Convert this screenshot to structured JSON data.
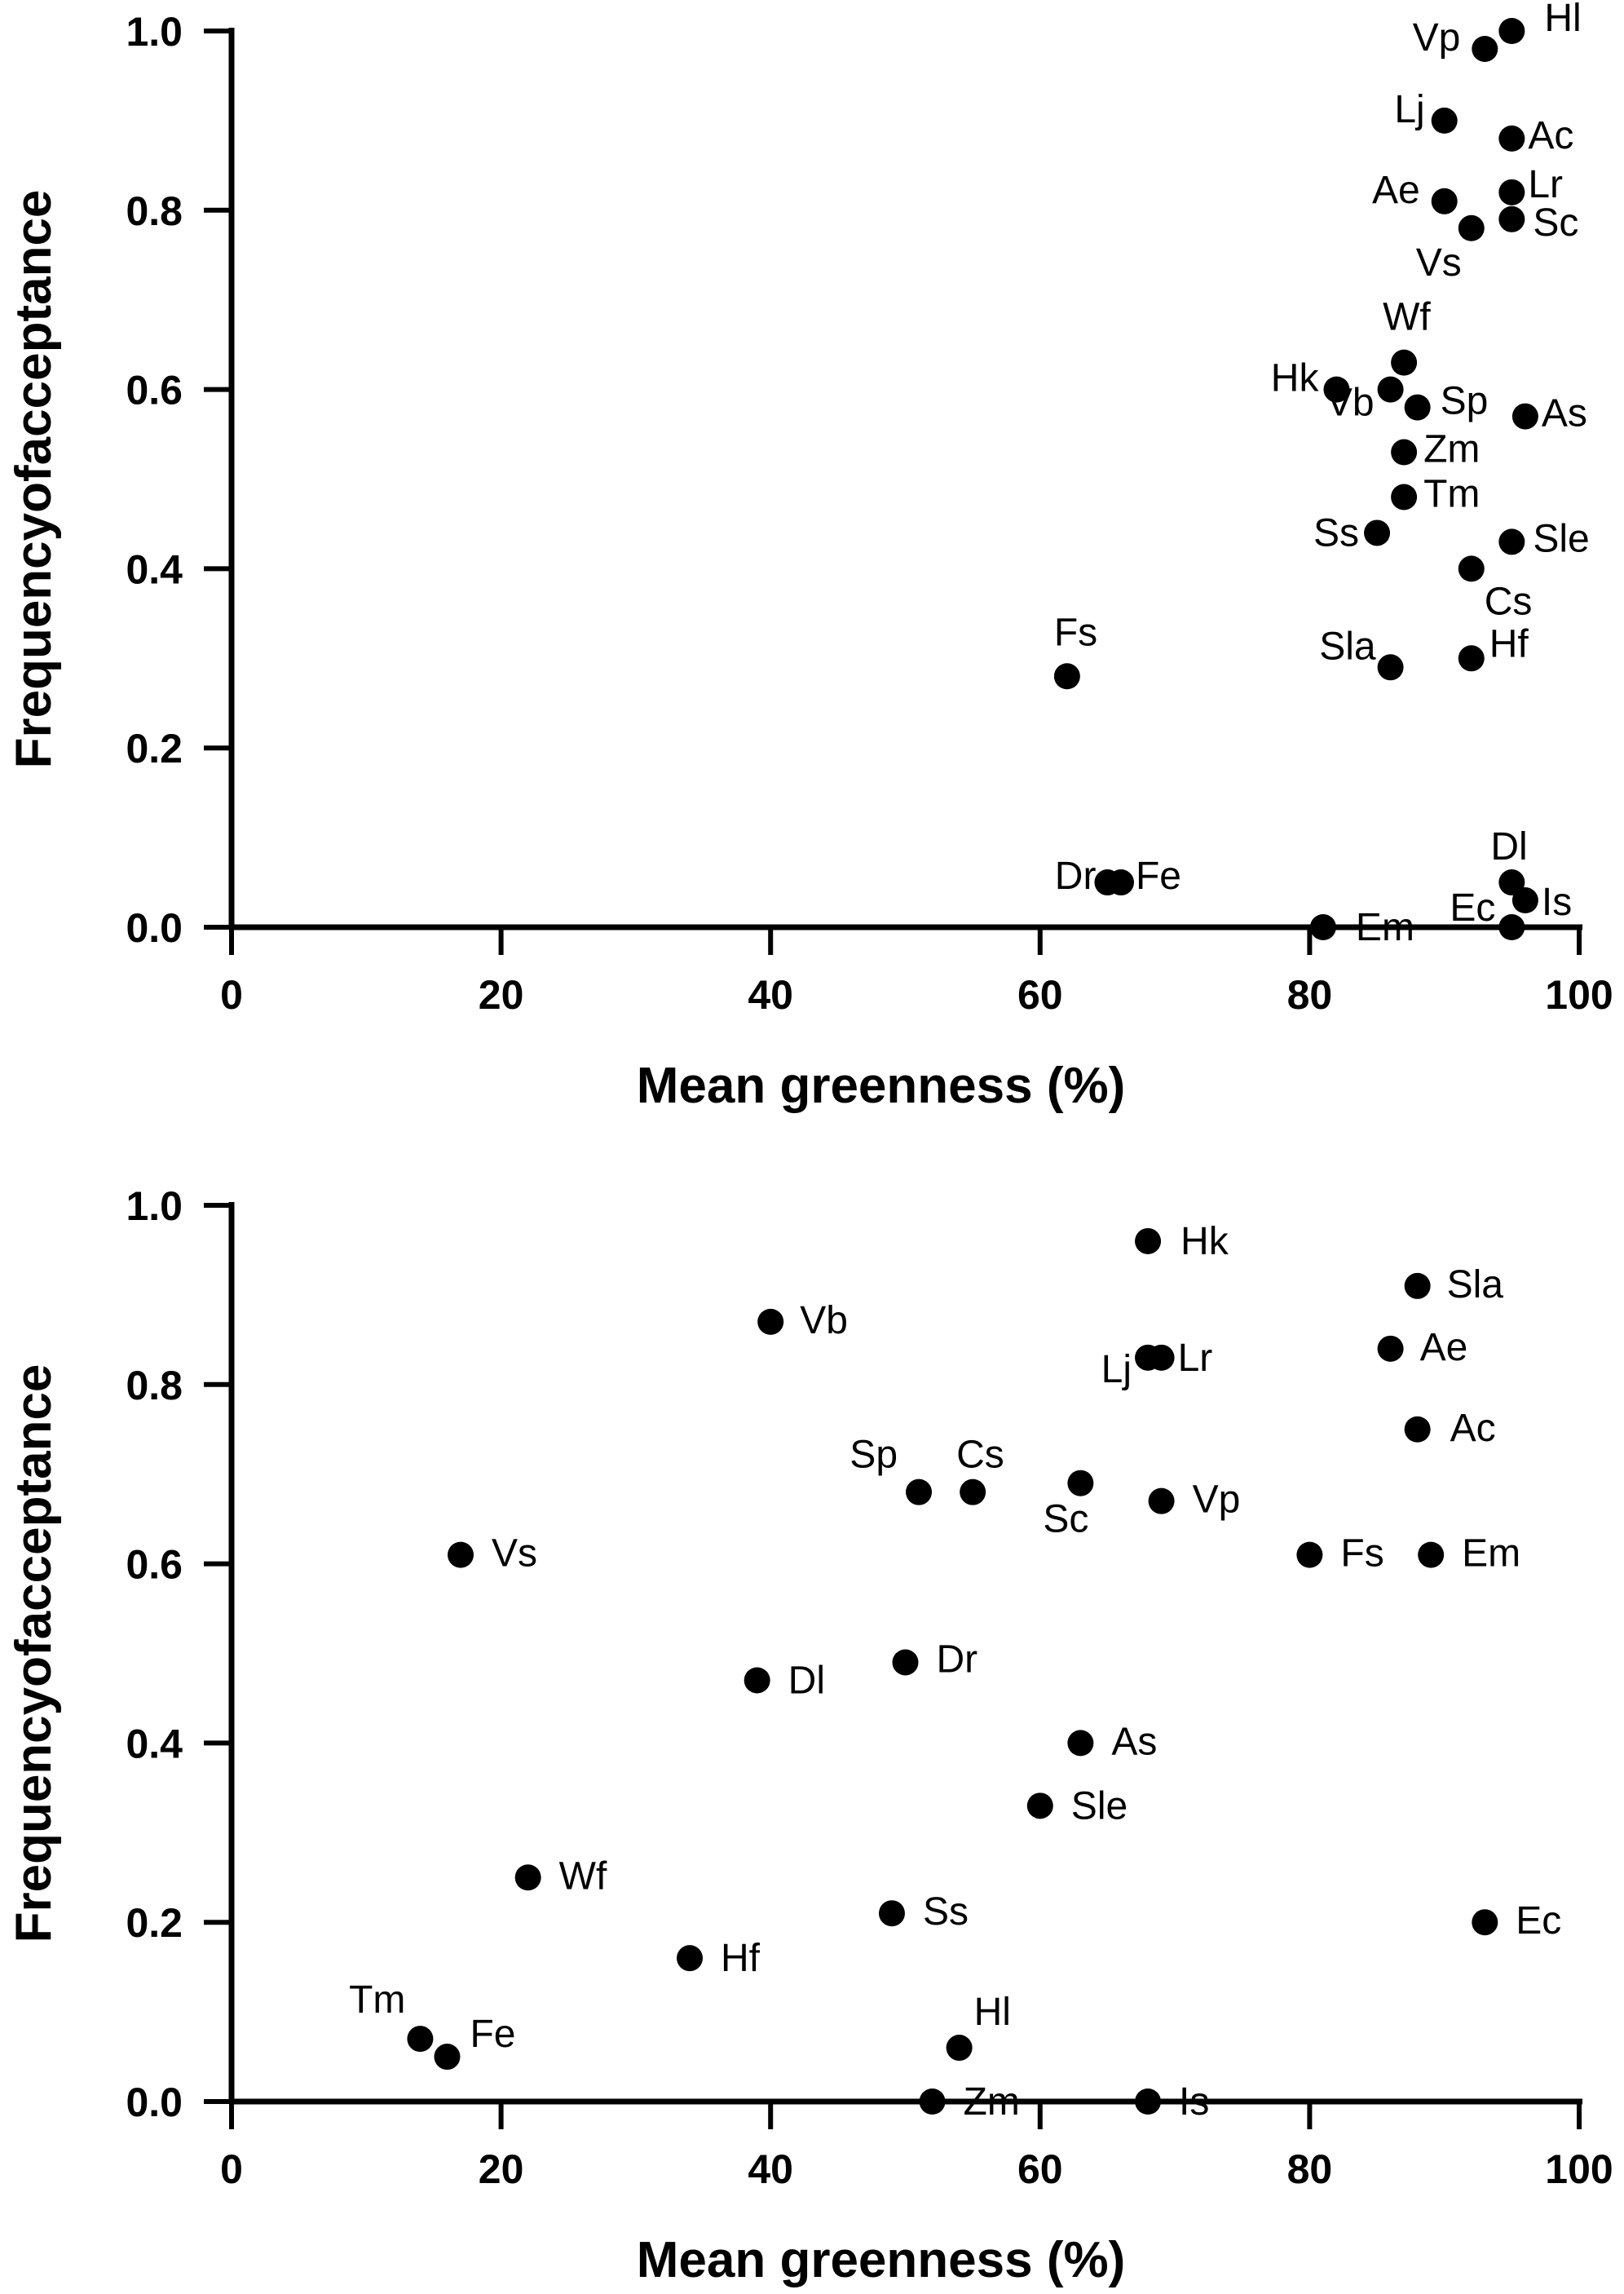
{
  "chart_data": [
    {
      "type": "scatter",
      "title": "",
      "xlabel": "Mean greenness (%)",
      "ylabel": "Frequencyofacceptance",
      "xlim": [
        0,
        100
      ],
      "ylim": [
        0,
        1.0
      ],
      "x_ticks": [
        "0",
        "20",
        "40",
        "60",
        "80",
        "100"
      ],
      "y_ticks": [
        "0.0",
        "0.2",
        "0.4",
        "0.6",
        "0.8",
        "1.0"
      ],
      "grid": false,
      "points": [
        {
          "label": "Hl",
          "x": 95,
          "y": 1.0
        },
        {
          "label": "Vp",
          "x": 93,
          "y": 0.98
        },
        {
          "label": "Lj",
          "x": 90,
          "y": 0.9
        },
        {
          "label": "Ac",
          "x": 95,
          "y": 0.88
        },
        {
          "label": "Ae",
          "x": 90,
          "y": 0.81
        },
        {
          "label": "Lr",
          "x": 95,
          "y": 0.82
        },
        {
          "label": "Sc",
          "x": 95,
          "y": 0.79
        },
        {
          "label": "Vs",
          "x": 92,
          "y": 0.78
        },
        {
          "label": "Wf",
          "x": 87,
          "y": 0.63
        },
        {
          "label": "Hk",
          "x": 82,
          "y": 0.6
        },
        {
          "label": "Vb",
          "x": 86,
          "y": 0.6
        },
        {
          "label": "Sp",
          "x": 88,
          "y": 0.58
        },
        {
          "label": "As",
          "x": 96,
          "y": 0.57
        },
        {
          "label": "Zm",
          "x": 87,
          "y": 0.53
        },
        {
          "label": "Tm",
          "x": 87,
          "y": 0.48
        },
        {
          "label": "Ss",
          "x": 85,
          "y": 0.44
        },
        {
          "label": "Sle",
          "x": 95,
          "y": 0.43
        },
        {
          "label": "Cs",
          "x": 92,
          "y": 0.4
        },
        {
          "label": "Sla",
          "x": 86,
          "y": 0.29
        },
        {
          "label": "Hf",
          "x": 92,
          "y": 0.3
        },
        {
          "label": "Fs",
          "x": 62,
          "y": 0.28
        },
        {
          "label": "Dr",
          "x": 65,
          "y": 0.05
        },
        {
          "label": "Fe",
          "x": 66,
          "y": 0.05
        },
        {
          "label": "Dl",
          "x": 95,
          "y": 0.05
        },
        {
          "label": "Is",
          "x": 96,
          "y": 0.03
        },
        {
          "label": "Ec",
          "x": 95,
          "y": 0.0
        },
        {
          "label": "Em",
          "x": 81,
          "y": 0.0
        }
      ]
    },
    {
      "type": "scatter",
      "title": "",
      "xlabel": "Mean greenness (%)",
      "ylabel": "Frequencyofacceptance",
      "xlim": [
        0,
        100
      ],
      "ylim": [
        0,
        1.0
      ],
      "x_ticks": [
        "0",
        "20",
        "40",
        "60",
        "80",
        "100"
      ],
      "y_ticks": [
        "0.0",
        "0.2",
        "0.4",
        "0.6",
        "0.8",
        "1.0"
      ],
      "grid": false,
      "points": [
        {
          "label": "Hk",
          "x": 68,
          "y": 0.96
        },
        {
          "label": "Sla",
          "x": 88,
          "y": 0.91
        },
        {
          "label": "Vb",
          "x": 40,
          "y": 0.87
        },
        {
          "label": "Ae",
          "x": 86,
          "y": 0.84
        },
        {
          "label": "Lj",
          "x": 68,
          "y": 0.83
        },
        {
          "label": "Lr",
          "x": 69,
          "y": 0.83
        },
        {
          "label": "Ac",
          "x": 88,
          "y": 0.75
        },
        {
          "label": "Sp",
          "x": 51,
          "y": 0.68
        },
        {
          "label": "Cs",
          "x": 55,
          "y": 0.68
        },
        {
          "label": "Sc",
          "x": 63,
          "y": 0.69
        },
        {
          "label": "Vp",
          "x": 69,
          "y": 0.67
        },
        {
          "label": "Vs",
          "x": 17,
          "y": 0.61
        },
        {
          "label": "Fs",
          "x": 80,
          "y": 0.61
        },
        {
          "label": "Em",
          "x": 89,
          "y": 0.61
        },
        {
          "label": "Dl",
          "x": 39,
          "y": 0.47
        },
        {
          "label": "Dr",
          "x": 50,
          "y": 0.49
        },
        {
          "label": "As",
          "x": 63,
          "y": 0.4
        },
        {
          "label": "Sle",
          "x": 60,
          "y": 0.33
        },
        {
          "label": "Wf",
          "x": 22,
          "y": 0.25
        },
        {
          "label": "Ss",
          "x": 49,
          "y": 0.21
        },
        {
          "label": "Ec",
          "x": 93,
          "y": 0.2
        },
        {
          "label": "Hf",
          "x": 34,
          "y": 0.16
        },
        {
          "label": "Tm",
          "x": 14,
          "y": 0.07
        },
        {
          "label": "Fe",
          "x": 16,
          "y": 0.05
        },
        {
          "label": "Hl",
          "x": 54,
          "y": 0.06
        },
        {
          "label": "Zm",
          "x": 52,
          "y": 0.0
        },
        {
          "label": "Is",
          "x": 68,
          "y": 0.0
        }
      ]
    }
  ]
}
